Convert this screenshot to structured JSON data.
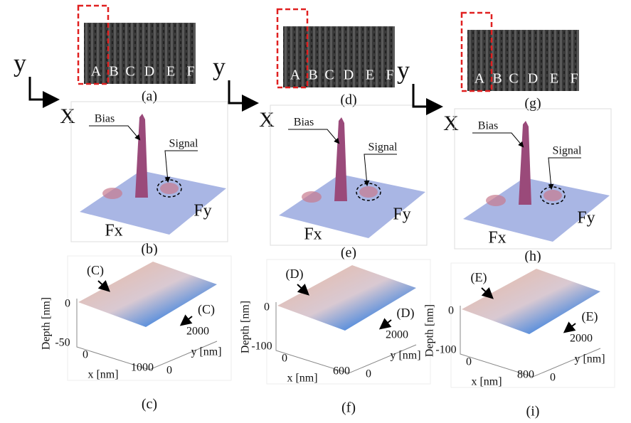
{
  "panels": [
    {
      "image_letters": [
        "A",
        "B",
        "C",
        "D",
        "E",
        "F"
      ],
      "image_caption": "(a)",
      "axis_y": "y",
      "axis_x": "X",
      "fft": {
        "bias": "Bias",
        "signal": "Signal",
        "fx": "Fx",
        "fy": "Fy",
        "caption": "(b)"
      },
      "surface": {
        "marker_left": "(C)",
        "marker_right": "(C)",
        "z_label": "Depth [nm]",
        "z_ticks": [
          0,
          -50
        ],
        "x_label": "x [nm]",
        "x_ticks": [
          0,
          1000
        ],
        "y_label": "y [nm]",
        "y_ticks": [
          2000,
          0
        ],
        "caption": "(c)"
      }
    },
    {
      "image_letters": [
        "A",
        "B",
        "C",
        "D",
        "E",
        "F"
      ],
      "image_caption": "(d)",
      "axis_y": "y",
      "axis_x": "X",
      "fft": {
        "bias": "Bias",
        "signal": "Signal",
        "fx": "Fx",
        "fy": "Fy",
        "caption": "(e)"
      },
      "surface": {
        "marker_left": "(D)",
        "marker_right": "(D)",
        "z_label": "Depth [nm]",
        "z_ticks": [
          0,
          -100
        ],
        "x_label": "x [nm]",
        "x_ticks": [
          0,
          600
        ],
        "y_label": "y [nm]",
        "y_ticks": [
          2000,
          0
        ],
        "caption": "(f)"
      }
    },
    {
      "image_letters": [
        "A",
        "B",
        "C",
        "D",
        "E",
        "F"
      ],
      "image_caption": "(g)",
      "axis_y": "y",
      "axis_x": "X",
      "fft": {
        "bias": "Bias",
        "signal": "Signal",
        "fx": "Fx",
        "fy": "Fy",
        "caption": "(h)"
      },
      "surface": {
        "marker_left": "(E)",
        "marker_right": "(E)",
        "z_label": "Depth [nm]",
        "z_ticks": [
          0,
          -100
        ],
        "x_label": "x [nm]",
        "x_ticks": [
          0,
          800
        ],
        "y_label": "y [nm]",
        "y_ticks": [
          2000,
          0
        ],
        "caption": "(i)"
      }
    }
  ]
}
